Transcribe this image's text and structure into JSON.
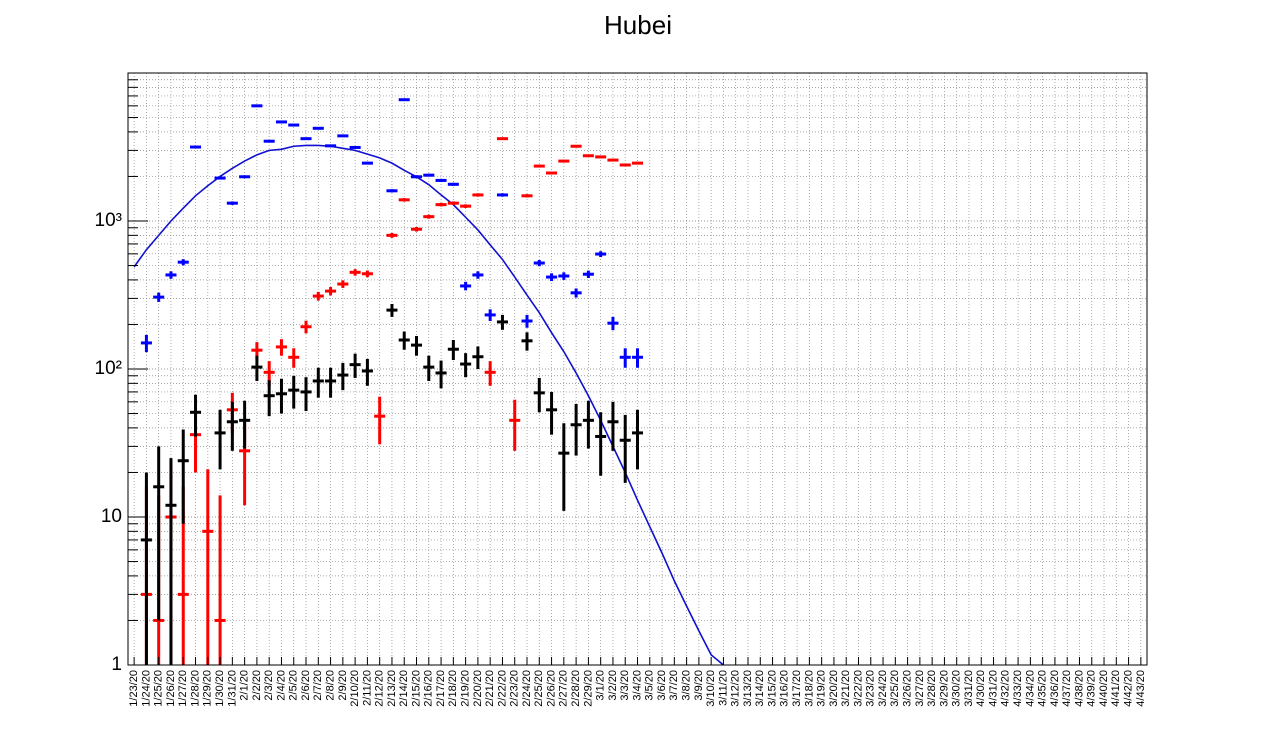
{
  "chart_data": {
    "type": "errorbar",
    "title": "Hubei",
    "log_y": true,
    "grid": true,
    "categories": [
      "1/23/20",
      "1/24/20",
      "1/25/20",
      "1/26/20",
      "1/27/20",
      "1/28/20",
      "1/29/20",
      "1/30/20",
      "1/31/20",
      "2/1/20",
      "2/2/20",
      "2/3/20",
      "2/4/20",
      "2/5/20",
      "2/6/20",
      "2/7/20",
      "2/8/20",
      "2/9/20",
      "2/10/20",
      "2/11/20",
      "2/12/20",
      "2/13/20",
      "2/14/20",
      "2/15/20",
      "2/16/20",
      "2/17/20",
      "2/18/20",
      "2/19/20",
      "2/20/20",
      "2/21/20",
      "2/22/20",
      "2/23/20",
      "2/24/20",
      "2/25/20",
      "2/26/20",
      "2/27/20",
      "2/28/20",
      "2/29/20",
      "3/1/20",
      "3/2/20",
      "3/3/20",
      "3/4/20",
      "3/5/20",
      "3/6/20",
      "3/7/20",
      "3/8/20",
      "3/9/20",
      "3/10/20",
      "3/11/20",
      "3/12/20",
      "3/13/20",
      "3/14/20",
      "3/15/20",
      "3/16/20",
      "3/17/20",
      "3/18/20",
      "3/19/20",
      "3/20/20",
      "3/21/20",
      "3/22/20",
      "3/23/20",
      "3/24/20",
      "3/25/20",
      "3/26/20",
      "3/27/20",
      "3/28/20",
      "3/29/20",
      "3/30/20",
      "3/31/20",
      "4/30/20",
      "4/31/20",
      "4/32/20",
      "4/33/20",
      "4/34/20",
      "4/35/20",
      "4/36/20",
      "4/37/20",
      "4/38/20",
      "4/39/20",
      "4/40/20",
      "4/41/20",
      "4/42/20",
      "4/43/20"
    ],
    "ylim": [
      1,
      10000
    ],
    "yticks": [
      1,
      10,
      {
        "value": 100,
        "label": "10²"
      },
      {
        "value": 1000,
        "label": "10³"
      }
    ],
    "yminorticks": [
      2,
      3,
      4,
      5,
      6,
      7,
      8,
      9,
      20,
      30,
      40,
      50,
      60,
      70,
      80,
      90,
      200,
      300,
      400,
      500,
      600,
      700,
      800,
      900,
      2000,
      3000,
      4000,
      5000,
      6000,
      7000,
      8000,
      9000
    ],
    "series": [
      {
        "type": "line",
        "color": "#1010d0",
        "values": [
          490,
          640,
          800,
          1000,
          1220,
          1480,
          1730,
          2000,
          2270,
          2540,
          2800,
          3000,
          3050,
          3200,
          3240,
          3240,
          3200,
          3100,
          3000,
          2830,
          2670,
          2460,
          2200,
          1990,
          1760,
          1500,
          1290,
          1060,
          870,
          690,
          550,
          418,
          316,
          240,
          176,
          131,
          94,
          66,
          45,
          30,
          20,
          13,
          8.6,
          5.7,
          3.7,
          2.5,
          1.7,
          1.17,
          1,
          null,
          null,
          null,
          null,
          null,
          null,
          null,
          null,
          null,
          null,
          null,
          null,
          null,
          null,
          null,
          null,
          null,
          null,
          null,
          null,
          null,
          null,
          null,
          null,
          null,
          null,
          null,
          null,
          null,
          null,
          null,
          null,
          null,
          null
        ]
      },
      {
        "type": "errorbar",
        "color": "#0000ff",
        "values": [
          null,
          150,
          306,
          432,
          527,
          3160,
          null,
          1950,
          1320,
          1990,
          6000,
          3460,
          4670,
          4450,
          3600,
          4230,
          3220,
          3760,
          3140,
          2460,
          null,
          1600,
          6600,
          1990,
          2040,
          1880,
          1770,
          364,
          432,
          232,
          1500,
          null,
          211,
          520,
          418,
          425,
          327,
          437,
          598,
          204,
          120,
          120,
          null,
          null,
          null,
          null,
          null,
          null,
          null,
          null,
          null,
          null,
          null,
          null,
          null,
          null,
          null,
          null,
          null,
          null,
          null,
          null,
          null,
          null,
          null,
          null,
          null,
          null,
          null,
          null,
          null,
          null,
          null,
          null,
          null,
          null,
          null,
          null,
          null,
          null,
          null,
          null,
          null
        ],
        "errors": [
          null,
          20,
          22,
          25,
          25,
          56,
          null,
          44,
          36,
          45,
          77,
          59,
          68,
          67,
          60,
          65,
          57,
          61,
          56,
          50,
          null,
          40,
          81,
          45,
          45,
          43,
          42,
          24,
          25,
          21,
          39,
          null,
          21,
          25,
          25,
          25,
          23,
          25,
          27,
          21,
          18,
          18,
          null,
          null,
          null,
          null,
          null,
          null,
          null,
          null,
          null,
          null,
          null,
          null,
          null,
          null,
          null,
          null,
          null,
          null,
          null,
          null,
          null,
          null,
          null,
          null,
          null,
          null,
          null,
          null,
          null,
          null,
          null,
          null,
          null,
          null,
          null,
          null,
          null,
          null,
          null,
          null,
          null
        ]
      },
      {
        "type": "errorbar",
        "color": "#ff0000",
        "values": [
          null,
          3,
          2,
          10,
          3,
          36,
          8,
          2,
          53,
          28,
          134,
          95,
          141,
          120,
          193,
          311,
          336,
          375,
          450,
          440,
          48,
          800,
          1390,
          880,
          1070,
          1290,
          1320,
          1260,
          1500,
          95,
          3600,
          45,
          1480,
          2350,
          2110,
          2540,
          3200,
          2760,
          2710,
          2580,
          2390,
          2460,
          null,
          null,
          null,
          null,
          null,
          null,
          null,
          null,
          null,
          null,
          null,
          null,
          null,
          null,
          null,
          null,
          null,
          null,
          null,
          null,
          null,
          null,
          null,
          null,
          null,
          null,
          null,
          null,
          null,
          null,
          null,
          null,
          null,
          null,
          null,
          null,
          null,
          null,
          null,
          null,
          null
        ],
        "errors": [
          null,
          13,
          12,
          13,
          13,
          16,
          13,
          12,
          16,
          16,
          18,
          18,
          18,
          18,
          19,
          21,
          22,
          22,
          23,
          23,
          17,
          30,
          38,
          31,
          34,
          36,
          37,
          36,
          39,
          18,
          60,
          17,
          39,
          48,
          46,
          50,
          57,
          53,
          52,
          51,
          49,
          50,
          null,
          null,
          null,
          null,
          null,
          null,
          null,
          null,
          null,
          null,
          null,
          null,
          null,
          null,
          null,
          null,
          null,
          null,
          null,
          null,
          null,
          null,
          null,
          null,
          null,
          null,
          null,
          null,
          null,
          null,
          null,
          null,
          null,
          null,
          null,
          null,
          null,
          null,
          null,
          null,
          null
        ]
      },
      {
        "type": "errorbar",
        "color": "#000000",
        "values": [
          null,
          7,
          16,
          12,
          24,
          51,
          null,
          37,
          44,
          45,
          103,
          66,
          68,
          72,
          70,
          83,
          83,
          91,
          107,
          97,
          null,
          250,
          157,
          145,
          103,
          94,
          136,
          108,
          121,
          null,
          208,
          null,
          155,
          69,
          53,
          27,
          42,
          45,
          35,
          44,
          33,
          37,
          null,
          null,
          null,
          null,
          null,
          null,
          null,
          null,
          null,
          null,
          null,
          null,
          null,
          null,
          null,
          null,
          null,
          null,
          null,
          null,
          null,
          null,
          null,
          null,
          null,
          null,
          null,
          null,
          null,
          null,
          null,
          null,
          null,
          null,
          null,
          null,
          null,
          null,
          null,
          null,
          null
        ],
        "errors": [
          null,
          13,
          14,
          13,
          15,
          16,
          null,
          16,
          16,
          16,
          20,
          18,
          18,
          18,
          18,
          19,
          19,
          19,
          20,
          20,
          null,
          25,
          22,
          22,
          20,
          20,
          21,
          20,
          21,
          null,
          24,
          null,
          22,
          18,
          17,
          16,
          16,
          16,
          16,
          16,
          16,
          16,
          null,
          null,
          null,
          null,
          null,
          null,
          null,
          null,
          null,
          null,
          null,
          null,
          null,
          null,
          null,
          null,
          null,
          null,
          null,
          null,
          null,
          null,
          null,
          null,
          null,
          null,
          null,
          null,
          null,
          null,
          null,
          null,
          null,
          null,
          null,
          null,
          null,
          null,
          null,
          null,
          null
        ]
      }
    ]
  }
}
